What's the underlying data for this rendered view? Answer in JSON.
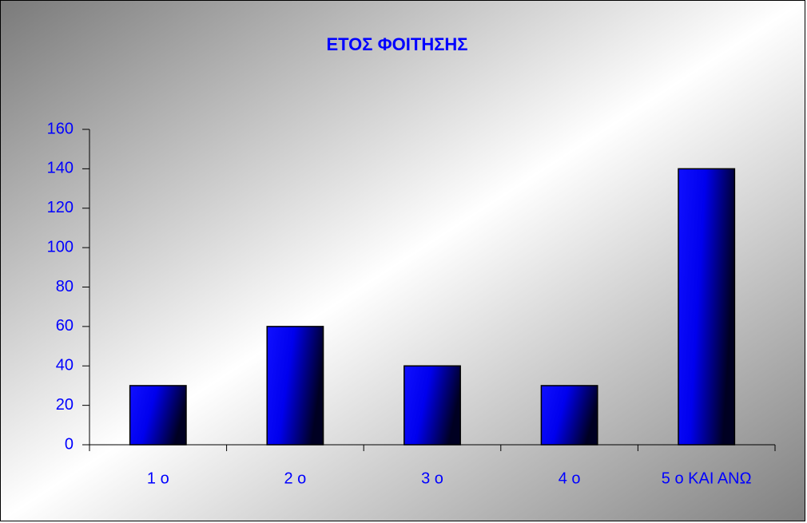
{
  "chart_data": {
    "type": "bar",
    "title": "ΕΤΟΣ ΦΟΙΤΗΣΗΣ",
    "categories": [
      "1 ο",
      "2 ο",
      "3 ο",
      "4 ο",
      "5 ο ΚΑΙ ΑΝΩ"
    ],
    "values": [
      30,
      60,
      40,
      30,
      140
    ],
    "color": "#0000ff",
    "ylim": [
      0,
      160
    ],
    "yticks": [
      0,
      20,
      40,
      60,
      80,
      100,
      120,
      140,
      160
    ],
    "grid": false
  }
}
